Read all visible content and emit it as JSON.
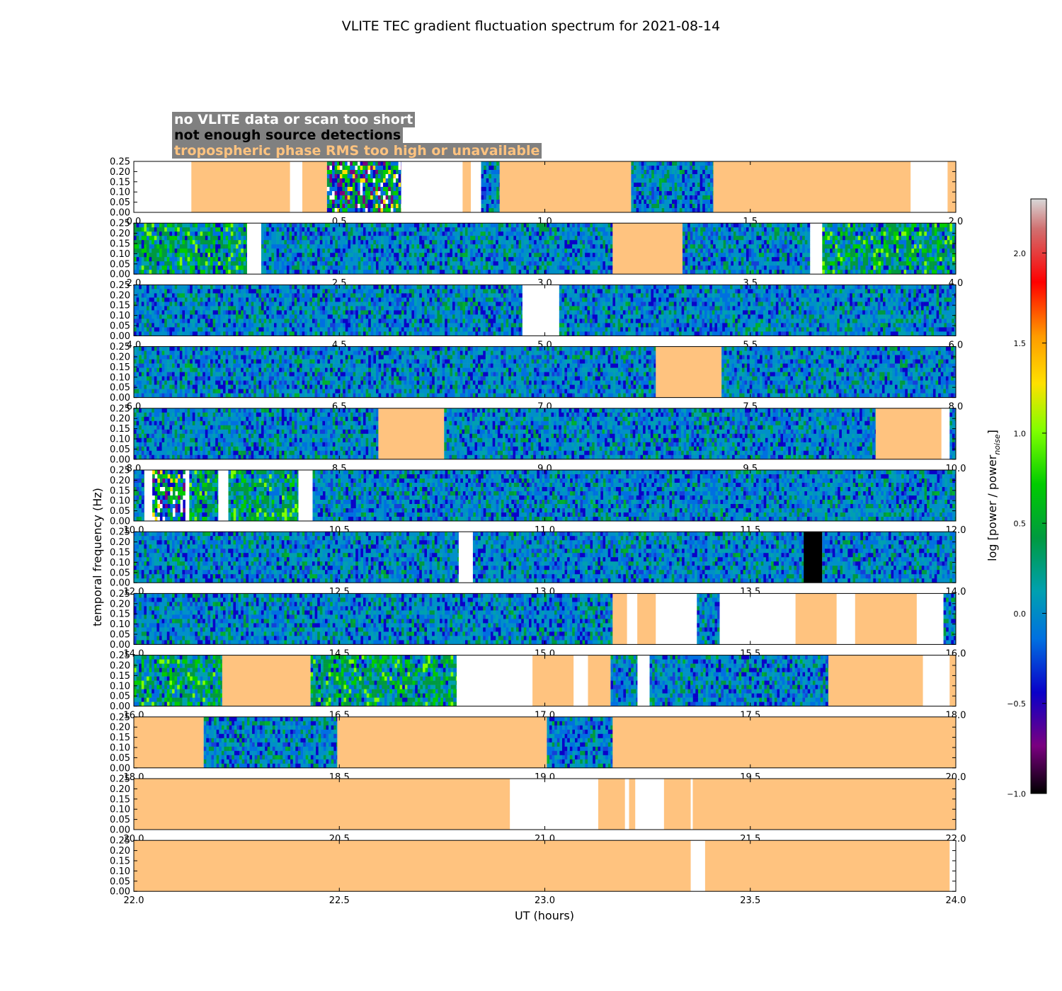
{
  "title": "VLITE TEC gradient fluctuation spectrum for 2021-08-14",
  "ylabel": "temporal frequency (Hz)",
  "xlabel": "UT (hours)",
  "legend": [
    {
      "label": "no VLITE data or scan too short",
      "color": "#ffffff"
    },
    {
      "label": "not enough source detections",
      "color": "#000000"
    },
    {
      "label": "tropospheric phase RMS too high or unavailable",
      "color": "#ffc37f"
    }
  ],
  "colorbar": {
    "label": "log [power / power",
    "label_sub": "noise",
    "label_end": "]",
    "ticks": [
      "−1.0",
      "−0.5",
      "0.0",
      "0.5",
      "1.0",
      "1.5",
      "2.0"
    ],
    "tick_values": [
      -1.0,
      -0.5,
      0.0,
      0.5,
      1.0,
      1.5,
      2.0
    ],
    "range": [
      -1.0,
      2.3
    ]
  },
  "chart_data": {
    "type": "heatmap",
    "title": "VLITE TEC gradient fluctuation spectrum for 2021-08-14",
    "xlabel": "UT (hours)",
    "ylabel": "temporal frequency (Hz)",
    "ylim": [
      0.0,
      0.25
    ],
    "y_ticks": [
      "0.00",
      "0.05",
      "0.10",
      "0.15",
      "0.20",
      "0.25"
    ],
    "colors": {
      "no_data": "#ffffff",
      "detections": "#000000",
      "troposphere": "#ffc37f"
    },
    "panels": [
      {
        "x_range": [
          0.0,
          2.0
        ],
        "x_ticks": [
          "0.0",
          "0.5",
          "1.0",
          "1.5",
          "2.0"
        ],
        "segments": [
          [
            0.0,
            0.14,
            "nodata"
          ],
          [
            0.14,
            0.38,
            "tropo"
          ],
          [
            0.38,
            0.41,
            "nodata"
          ],
          [
            0.41,
            0.47,
            "tropo"
          ],
          [
            0.47,
            0.65,
            "data_hot"
          ],
          [
            0.65,
            0.8,
            "nodata"
          ],
          [
            0.8,
            0.82,
            "tropo"
          ],
          [
            0.82,
            0.845,
            "nodata"
          ],
          [
            0.845,
            0.89,
            "data"
          ],
          [
            0.89,
            1.21,
            "tropo"
          ],
          [
            1.21,
            1.41,
            "data"
          ],
          [
            1.41,
            1.89,
            "tropo"
          ],
          [
            1.89,
            1.98,
            "nodata"
          ],
          [
            1.98,
            2.0,
            "tropo"
          ]
        ]
      },
      {
        "x_range": [
          2.0,
          4.0
        ],
        "x_ticks": [
          "2.0",
          "2.5",
          "3.0",
          "3.5",
          "4.0"
        ],
        "segments": [
          [
            2.0,
            2.275,
            "data_green"
          ],
          [
            2.275,
            2.31,
            "nodata"
          ],
          [
            2.31,
            3.165,
            "data"
          ],
          [
            3.165,
            3.335,
            "tropo"
          ],
          [
            3.335,
            3.645,
            "data"
          ],
          [
            3.645,
            3.675,
            "nodata"
          ],
          [
            3.675,
            4.0,
            "data_green"
          ]
        ]
      },
      {
        "x_range": [
          4.0,
          6.0
        ],
        "x_ticks": [
          "4.0",
          "4.5",
          "5.0",
          "5.5",
          "6.0"
        ],
        "segments": [
          [
            4.0,
            4.945,
            "data"
          ],
          [
            4.945,
            5.035,
            "nodata"
          ],
          [
            5.035,
            6.0,
            "data"
          ]
        ]
      },
      {
        "x_range": [
          6.0,
          8.0
        ],
        "x_ticks": [
          "6.0",
          "6.5",
          "7.0",
          "7.5",
          "8.0"
        ],
        "segments": [
          [
            6.0,
            7.27,
            "data"
          ],
          [
            7.27,
            7.43,
            "tropo"
          ],
          [
            7.43,
            8.0,
            "data"
          ]
        ]
      },
      {
        "x_range": [
          8.0,
          10.0
        ],
        "x_ticks": [
          "8.0",
          "8.5",
          "9.0",
          "9.5",
          "10.0"
        ],
        "segments": [
          [
            8.0,
            8.595,
            "data"
          ],
          [
            8.595,
            8.755,
            "tropo"
          ],
          [
            8.755,
            9.805,
            "data"
          ],
          [
            9.805,
            9.965,
            "tropo"
          ],
          [
            9.965,
            9.985,
            "nodata"
          ],
          [
            9.985,
            10.0,
            "data"
          ]
        ]
      },
      {
        "x_range": [
          10.0,
          12.0
        ],
        "x_ticks": [
          "10.0",
          "10.5",
          "11.0",
          "11.5",
          "12.0"
        ],
        "segments": [
          [
            10.0,
            10.025,
            "data"
          ],
          [
            10.025,
            10.045,
            "nodata"
          ],
          [
            10.045,
            10.125,
            "data_hot"
          ],
          [
            10.125,
            10.135,
            "nodata"
          ],
          [
            10.135,
            10.205,
            "data_green"
          ],
          [
            10.205,
            10.23,
            "nodata"
          ],
          [
            10.23,
            10.4,
            "data_green"
          ],
          [
            10.4,
            10.435,
            "nodata"
          ],
          [
            10.435,
            12.0,
            "data"
          ]
        ]
      },
      {
        "x_range": [
          12.0,
          14.0
        ],
        "x_ticks": [
          "12.0",
          "12.5",
          "13.0",
          "13.5",
          "14.0"
        ],
        "segments": [
          [
            12.0,
            12.79,
            "data"
          ],
          [
            12.79,
            12.825,
            "nodata"
          ],
          [
            12.825,
            13.63,
            "data"
          ],
          [
            13.63,
            13.675,
            "detections"
          ],
          [
            13.675,
            14.0,
            "data"
          ]
        ]
      },
      {
        "x_range": [
          14.0,
          16.0
        ],
        "x_ticks": [
          "14.0",
          "14.5",
          "15.0",
          "15.5",
          "16.0"
        ],
        "segments": [
          [
            14.0,
            15.165,
            "data"
          ],
          [
            15.165,
            15.2,
            "tropo"
          ],
          [
            15.2,
            15.225,
            "nodata"
          ],
          [
            15.225,
            15.27,
            "tropo"
          ],
          [
            15.27,
            15.37,
            "nodata"
          ],
          [
            15.37,
            15.425,
            "data"
          ],
          [
            15.425,
            15.61,
            "nodata"
          ],
          [
            15.61,
            15.71,
            "tropo"
          ],
          [
            15.71,
            15.755,
            "nodata"
          ],
          [
            15.755,
            15.905,
            "tropo"
          ],
          [
            15.905,
            15.97,
            "nodata"
          ],
          [
            15.97,
            16.0,
            "data"
          ]
        ]
      },
      {
        "x_range": [
          16.0,
          18.0
        ],
        "x_ticks": [
          "16.0",
          "16.5",
          "17.0",
          "17.5",
          "18.0"
        ],
        "segments": [
          [
            16.0,
            16.215,
            "data_green"
          ],
          [
            16.215,
            16.43,
            "tropo"
          ],
          [
            16.43,
            16.785,
            "data_green"
          ],
          [
            16.785,
            16.97,
            "nodata"
          ],
          [
            16.97,
            17.07,
            "tropo"
          ],
          [
            17.07,
            17.105,
            "nodata"
          ],
          [
            17.105,
            17.16,
            "tropo"
          ],
          [
            17.16,
            17.225,
            "data"
          ],
          [
            17.225,
            17.255,
            "nodata"
          ],
          [
            17.255,
            17.69,
            "data"
          ],
          [
            17.69,
            17.92,
            "tropo"
          ],
          [
            17.92,
            17.985,
            "nodata"
          ],
          [
            17.985,
            18.0,
            "tropo"
          ]
        ]
      },
      {
        "x_range": [
          18.0,
          20.0
        ],
        "x_ticks": [
          "18.0",
          "18.5",
          "19.0",
          "19.5",
          "20.0"
        ],
        "segments": [
          [
            18.0,
            18.17,
            "tropo"
          ],
          [
            18.17,
            18.495,
            "data"
          ],
          [
            18.495,
            19.005,
            "tropo"
          ],
          [
            19.005,
            19.165,
            "data"
          ],
          [
            19.165,
            20.0,
            "tropo"
          ]
        ]
      },
      {
        "x_range": [
          20.0,
          22.0
        ],
        "x_ticks": [
          "20.0",
          "20.5",
          "21.0",
          "21.5",
          "22.0"
        ],
        "segments": [
          [
            20.0,
            20.915,
            "tropo"
          ],
          [
            20.915,
            21.13,
            "nodata"
          ],
          [
            21.13,
            21.195,
            "tropo"
          ],
          [
            21.195,
            21.205,
            "nodata"
          ],
          [
            21.205,
            21.22,
            "tropo"
          ],
          [
            21.22,
            21.29,
            "nodata"
          ],
          [
            21.29,
            21.355,
            "tropo"
          ],
          [
            21.355,
            21.36,
            "nodata"
          ],
          [
            21.36,
            22.0,
            "tropo"
          ]
        ]
      },
      {
        "x_range": [
          22.0,
          24.0
        ],
        "x_ticks": [
          "22.0",
          "22.5",
          "23.0",
          "23.5",
          "24.0"
        ],
        "segments": [
          [
            22.0,
            23.355,
            "tropo"
          ],
          [
            23.355,
            23.39,
            "nodata"
          ],
          [
            23.39,
            23.985,
            "tropo"
          ],
          [
            23.985,
            24.0,
            "nodata"
          ]
        ]
      }
    ]
  }
}
